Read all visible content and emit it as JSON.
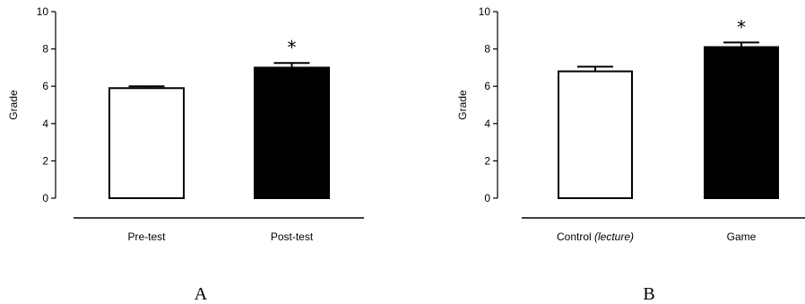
{
  "chart_data": [
    {
      "type": "bar",
      "panel": "A",
      "categories": [
        "Pre-test",
        "Post-test"
      ],
      "values": [
        5.9,
        7.0
      ],
      "errors": [
        0.1,
        0.25
      ],
      "fills": [
        "#ffffff",
        "#000000"
      ],
      "significance": [
        "",
        "*"
      ],
      "ylabel": "Grade",
      "ylim": [
        0,
        10
      ],
      "yticks": [
        "0",
        "2",
        "4",
        "6",
        "8",
        "10"
      ],
      "grid": false
    },
    {
      "type": "bar",
      "panel": "B",
      "categories": [
        "Control",
        "Game"
      ],
      "category_suffix": [
        "(lecture)",
        ""
      ],
      "values": [
        6.8,
        8.1
      ],
      "errors": [
        0.25,
        0.25
      ],
      "fills": [
        "#ffffff",
        "#000000"
      ],
      "significance": [
        "",
        "*"
      ],
      "ylabel": "Grade",
      "ylim": [
        0,
        10
      ],
      "yticks": [
        "0",
        "2",
        "4",
        "6",
        "8",
        "10"
      ],
      "grid": false
    }
  ]
}
